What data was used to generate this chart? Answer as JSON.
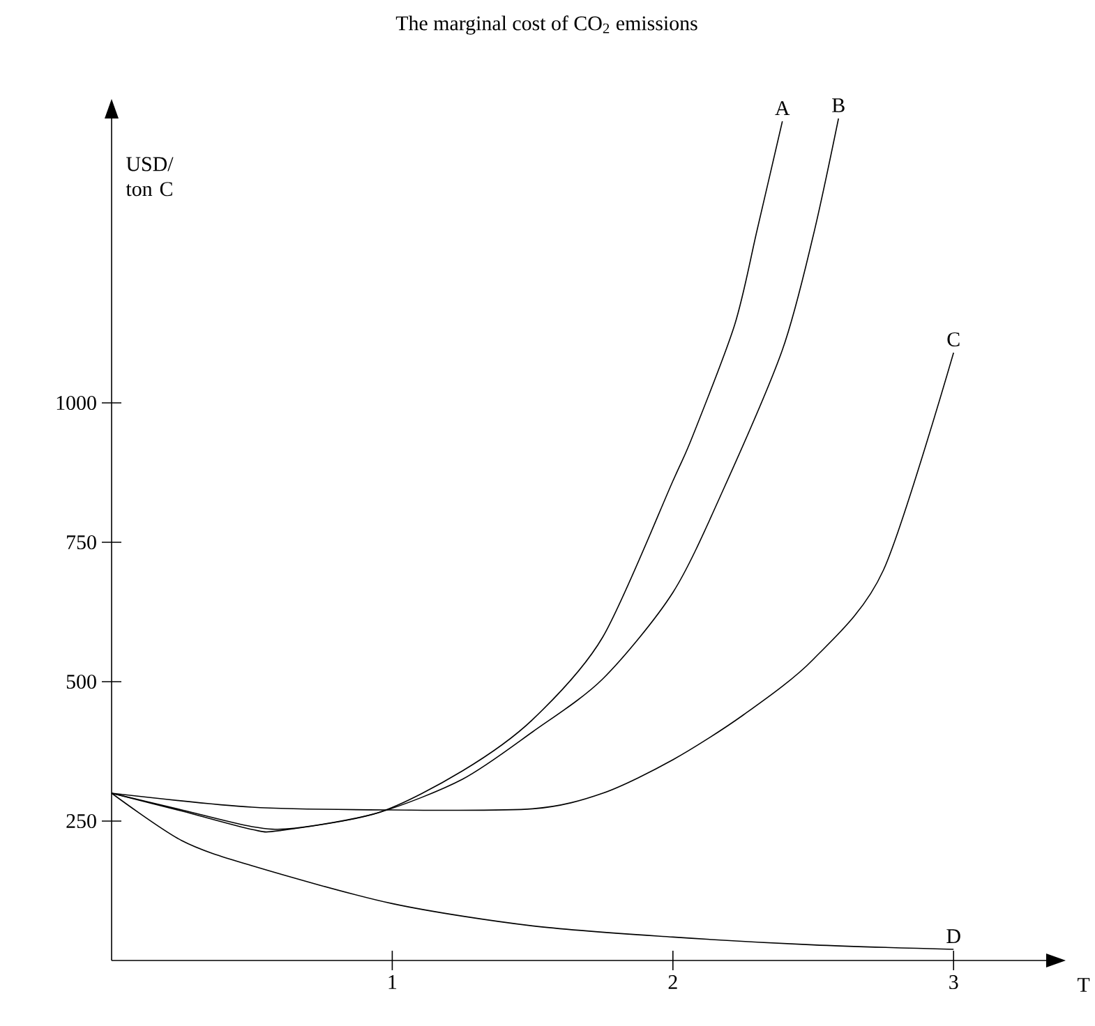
{
  "chart_data": {
    "type": "line",
    "title": "The marginal cost of CO$_{2}$ emissions",
    "ylabel": "USD/ ton C",
    "xlabel": "T",
    "xlim": [
      0,
      3.33
    ],
    "ylim": [
      0,
      1510
    ],
    "xticks": [
      1,
      2,
      3
    ],
    "yticks": [
      250,
      500,
      750,
      1000
    ],
    "grid": false,
    "marker": "none",
    "line_style": "solid",
    "series": [
      {
        "name": "A",
        "color": "#000000",
        "x": [
          0,
          0.25,
          0.5,
          0.6,
          0.95,
          1.25,
          1.5,
          1.75,
          2.0,
          2.07,
          2.22,
          2.3,
          2.39
        ],
        "values": [
          300,
          268,
          235,
          233,
          265,
          340,
          432,
          580,
          860,
          940,
          1140,
          1310,
          1505
        ]
      },
      {
        "name": "B",
        "color": "#000000",
        "x": [
          0,
          0.25,
          0.5,
          0.65,
          0.95,
          1.25,
          1.5,
          1.75,
          2.0,
          2.18,
          2.39,
          2.5,
          2.59
        ],
        "values": [
          300,
          270,
          240,
          237,
          265,
          325,
          410,
          505,
          660,
          845,
          1095,
          1300,
          1510
        ]
      },
      {
        "name": "C",
        "color": "#000000",
        "x": [
          0,
          0.5,
          1.0,
          1.5,
          1.75,
          2.0,
          2.25,
          2.5,
          2.75,
          3.0
        ],
        "values": [
          300,
          275,
          270,
          272,
          300,
          360,
          440,
          540,
          700,
          1090
        ]
      },
      {
        "name": "D",
        "color": "#000000",
        "x": [
          0,
          0.25,
          0.5,
          1.0,
          1.5,
          2.0,
          2.5,
          3.0
        ],
        "values": [
          300,
          215,
          170,
          102,
          62,
          42,
          28,
          20
        ]
      }
    ]
  }
}
